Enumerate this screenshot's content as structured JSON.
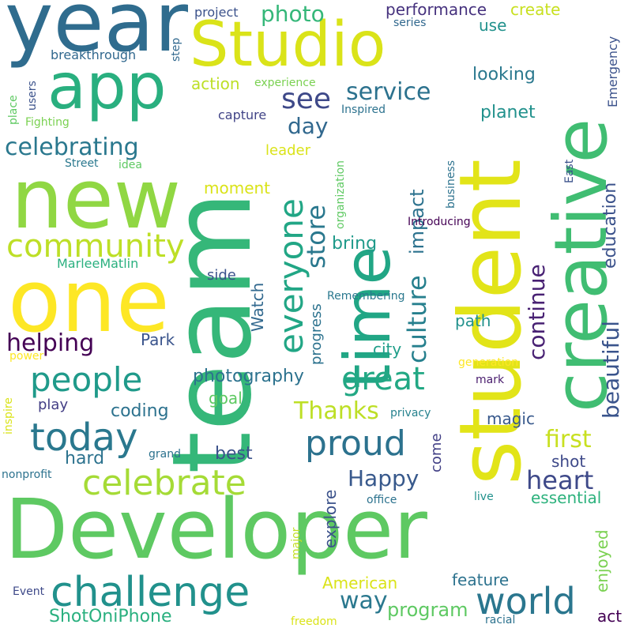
{
  "background": "#ffffff",
  "words": [
    {
      "text": "Developer",
      "color": "#5ec962",
      "vertical": false
    },
    {
      "text": "team",
      "color": "#35b779",
      "vertical": true
    },
    {
      "text": "student",
      "color": "#e2e418",
      "vertical": true
    },
    {
      "text": "time",
      "color": "#21a685",
      "vertical": true
    },
    {
      "text": "one",
      "color": "#fde725",
      "vertical": false
    },
    {
      "text": "new",
      "color": "#90d743",
      "vertical": false
    },
    {
      "text": "creative",
      "color": "#40bd72",
      "vertical": true
    },
    {
      "text": "year",
      "color": "#2f6c8e",
      "vertical": false
    },
    {
      "text": "app",
      "color": "#29af7f",
      "vertical": false
    },
    {
      "text": "Studio",
      "color": "#dae319",
      "vertical": false
    },
    {
      "text": "challenge",
      "color": "#21918c",
      "vertical": false
    },
    {
      "text": "everyone",
      "color": "#21a685",
      "vertical": true
    },
    {
      "text": "people",
      "color": "#1f9a8a",
      "vertical": false
    },
    {
      "text": "today",
      "color": "#2a788e",
      "vertical": false
    },
    {
      "text": "celebrate",
      "color": "#a5db36",
      "vertical": false
    },
    {
      "text": "community",
      "color": "#bddf26",
      "vertical": false
    },
    {
      "text": "world",
      "color": "#2a768e",
      "vertical": false
    },
    {
      "text": "proud",
      "color": "#2c728e",
      "vertical": false
    },
    {
      "text": "great",
      "color": "#22a884",
      "vertical": false
    },
    {
      "text": "beautiful",
      "color": "#3a548c",
      "vertical": true
    },
    {
      "text": "Happy",
      "color": "#38598c",
      "vertical": false
    },
    {
      "text": "heart",
      "color": "#3e4989",
      "vertical": false
    },
    {
      "text": "helping",
      "color": "#440154",
      "vertical": false
    },
    {
      "text": "celebrating",
      "color": "#2a788e",
      "vertical": false
    },
    {
      "text": "culture",
      "color": "#27808e",
      "vertical": true
    },
    {
      "text": "continue",
      "color": "#482173",
      "vertical": true
    },
    {
      "text": "education",
      "color": "#3b528b",
      "vertical": true
    },
    {
      "text": "service",
      "color": "#2c728e",
      "vertical": false
    },
    {
      "text": "photo",
      "color": "#35b779",
      "vertical": false
    },
    {
      "text": "see",
      "color": "#3e4989",
      "vertical": false
    },
    {
      "text": "store",
      "color": "#2a788e",
      "vertical": true
    },
    {
      "text": "impact",
      "color": "#2c728e",
      "vertical": true
    },
    {
      "text": "Thanks",
      "color": "#bddf26",
      "vertical": false
    },
    {
      "text": "first",
      "color": "#c8e020",
      "vertical": false
    },
    {
      "text": "way",
      "color": "#2a788e",
      "vertical": false
    },
    {
      "text": "day",
      "color": "#31688e",
      "vertical": false
    },
    {
      "text": "photography",
      "color": "#2c728e",
      "vertical": false
    },
    {
      "text": "performance",
      "color": "#46327e",
      "vertical": false
    },
    {
      "text": "program",
      "color": "#5ec962",
      "vertical": false
    },
    {
      "text": "ShotOniPhone",
      "color": "#2ab07f",
      "vertical": false
    },
    {
      "text": "looking",
      "color": "#2a788e",
      "vertical": false
    },
    {
      "text": "planet",
      "color": "#21918c",
      "vertical": false
    },
    {
      "text": "create",
      "color": "#c8e020",
      "vertical": false
    },
    {
      "text": "American",
      "color": "#dae319",
      "vertical": false
    },
    {
      "text": "feature",
      "color": "#2c728e",
      "vertical": false
    },
    {
      "text": "essential",
      "color": "#2db27d",
      "vertical": false
    },
    {
      "text": "explore",
      "color": "#3b528b",
      "vertical": true
    },
    {
      "text": "coding",
      "color": "#2c728e",
      "vertical": false
    },
    {
      "text": "enjoyed",
      "color": "#7ad151",
      "vertical": true
    },
    {
      "text": "hard",
      "color": "#2c728e",
      "vertical": false
    },
    {
      "text": "best",
      "color": "#3b528b",
      "vertical": false
    },
    {
      "text": "magic",
      "color": "#38598c",
      "vertical": false
    },
    {
      "text": "shot",
      "color": "#3e4989",
      "vertical": false
    },
    {
      "text": "bring",
      "color": "#1f9a8a",
      "vertical": false
    },
    {
      "text": "progress",
      "color": "#2c728e",
      "vertical": true
    },
    {
      "text": "city",
      "color": "#1f9e89",
      "vertical": false
    },
    {
      "text": "path",
      "color": "#21918c",
      "vertical": false
    },
    {
      "text": "action",
      "color": "#bddf26",
      "vertical": false
    },
    {
      "text": "moment",
      "color": "#dae319",
      "vertical": false
    },
    {
      "text": "leader",
      "color": "#dae319",
      "vertical": false
    },
    {
      "text": "Park",
      "color": "#3a548c",
      "vertical": false
    },
    {
      "text": "Watch",
      "color": "#31688e",
      "vertical": true
    },
    {
      "text": "side",
      "color": "#3b528b",
      "vertical": false
    },
    {
      "text": "goal",
      "color": "#5ec962",
      "vertical": false
    },
    {
      "text": "play",
      "color": "#433e85",
      "vertical": false
    },
    {
      "text": "use",
      "color": "#21918c",
      "vertical": false
    },
    {
      "text": "come",
      "color": "#424086",
      "vertical": true
    },
    {
      "text": "act",
      "color": "#440154",
      "vertical": false
    },
    {
      "text": "MarleeMatlin",
      "color": "#2ab07f",
      "vertical": false
    },
    {
      "text": "breakthrough",
      "color": "#31688e",
      "vertical": false
    },
    {
      "text": "project",
      "color": "#3b528b",
      "vertical": false
    },
    {
      "text": "series",
      "color": "#31688e",
      "vertical": false
    },
    {
      "text": "capture",
      "color": "#414487",
      "vertical": false
    },
    {
      "text": "Inspired",
      "color": "#2c728e",
      "vertical": false
    },
    {
      "text": "experience",
      "color": "#7ad151",
      "vertical": false
    },
    {
      "text": "Emergency",
      "color": "#3b528b",
      "vertical": true
    },
    {
      "text": "organization",
      "color": "#5ec962",
      "vertical": true
    },
    {
      "text": "business",
      "color": "#2c728e",
      "vertical": true
    },
    {
      "text": "Introducing",
      "color": "#440154",
      "vertical": false
    },
    {
      "text": "Remembering",
      "color": "#2a788e",
      "vertical": false
    },
    {
      "text": "generation",
      "color": "#fde725",
      "vertical": false
    },
    {
      "text": "mark",
      "color": "#481b6d",
      "vertical": false
    },
    {
      "text": "privacy",
      "color": "#26828e",
      "vertical": false
    },
    {
      "text": "office",
      "color": "#2c728e",
      "vertical": false
    },
    {
      "text": "live",
      "color": "#21918c",
      "vertical": false
    },
    {
      "text": "major",
      "color": "#c2df23",
      "vertical": true
    },
    {
      "text": "freedom",
      "color": "#dae319",
      "vertical": false
    },
    {
      "text": "racial",
      "color": "#2c728e",
      "vertical": false
    },
    {
      "text": "Event",
      "color": "#3e4989",
      "vertical": false
    },
    {
      "text": "nonprofit",
      "color": "#2c728e",
      "vertical": false
    },
    {
      "text": "grand",
      "color": "#2c728e",
      "vertical": false
    },
    {
      "text": "power",
      "color": "#fde725",
      "vertical": false
    },
    {
      "text": "inspire",
      "color": "#dae319",
      "vertical": true
    },
    {
      "text": "Street",
      "color": "#2a788e",
      "vertical": false
    },
    {
      "text": "idea",
      "color": "#5ec962",
      "vertical": false
    },
    {
      "text": "Fighting",
      "color": "#7ad151",
      "vertical": false
    },
    {
      "text": "users",
      "color": "#3b528b",
      "vertical": true
    },
    {
      "text": "place",
      "color": "#5ec962",
      "vertical": true
    },
    {
      "text": "step",
      "color": "#31688e",
      "vertical": true
    },
    {
      "text": "East",
      "color": "#3b528b",
      "vertical": true
    }
  ]
}
